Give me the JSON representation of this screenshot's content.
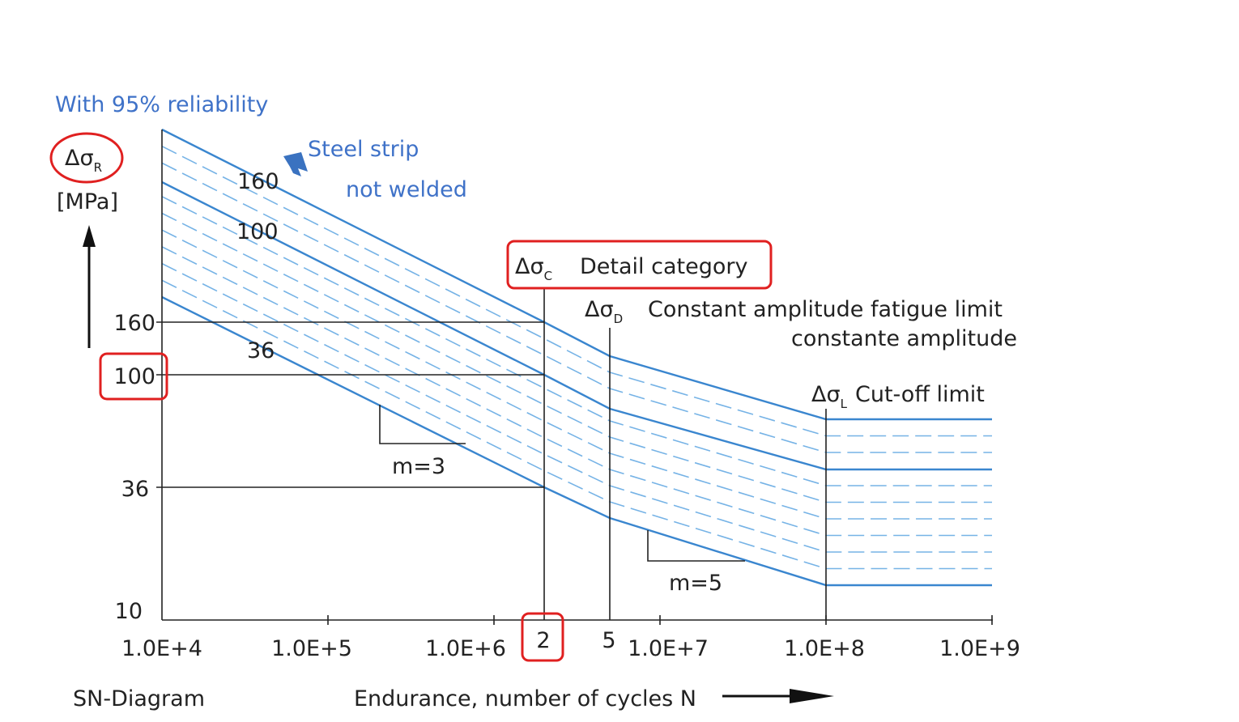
{
  "header": {
    "reliability": "With 95% reliability"
  },
  "y_axis": {
    "symbol": "Δσ",
    "sub": "R",
    "unit": "[MPa]",
    "labels": [
      "160",
      "100",
      "36",
      "10"
    ]
  },
  "x_axis": {
    "labels": [
      "1.0E+4",
      "1.0E+5",
      "1.0E+6",
      "1.0E+7",
      "1.0E+8",
      "1.0E+9"
    ],
    "extra_labels": [
      "2",
      "5"
    ],
    "title": "Endurance, number of cycles N"
  },
  "footer": {
    "title": "SN-Diagram"
  },
  "note": {
    "line1": "Steel strip",
    "line2": "not welded"
  },
  "curves": {
    "labels": [
      "160",
      "100",
      "36"
    ]
  },
  "detail_category": {
    "symbol": "Δσ",
    "sub": "C",
    "text": "Detail category"
  },
  "fatigue_limit": {
    "symbol": "Δσ",
    "sub": "D",
    "text": "Constant amplitude fatigue limit",
    "text2": "constante amplitude"
  },
  "cutoff_limit": {
    "symbol": "Δσ",
    "sub": "L",
    "text": "Cut-off limit"
  },
  "slopes": [
    "m=3",
    "m=5"
  ]
}
